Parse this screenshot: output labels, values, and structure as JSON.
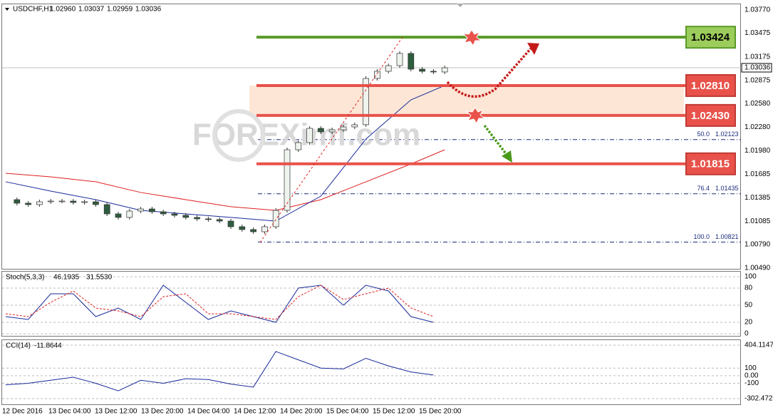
{
  "chart_data": [
    {
      "type": "candlestick",
      "symbol": "USDCHF,H1",
      "ohlc": [
        {
          "value": 1.0296,
          "label": "1.02960"
        },
        1.03037,
        1.02959,
        1.03036
      ],
      "watermark": "FOREXimf.com",
      "closes": [
        1.0136,
        1.01315,
        1.01297,
        1.01333,
        1.01342,
        1.01342,
        1.01324,
        1.01333,
        1.01297,
        1.01179,
        1.01134,
        1.01215,
        1.01242,
        1.01206,
        1.01179,
        1.01161,
        1.01134,
        1.01116,
        1.01107,
        1.01088,
        1.01016,
        1.0098,
        1.00952,
        1.01016,
        1.01224,
        1.01994,
        1.02085,
        1.02266,
        1.02221,
        1.02248,
        1.02284,
        1.02312,
        1.029,
        1.02991,
        1.03063,
        1.03218,
        1.03018,
        1.02991,
        1.02982,
        1.03036
      ],
      "up_color": "#eef3ee",
      "down_color": "#2f5d3f",
      "ma_index": [
        0,
        4,
        8,
        12,
        16,
        20,
        24,
        28,
        32,
        36,
        39
      ],
      "series": [
        {
          "color": "#e02020",
          "values": [
            1.01695,
            1.0165,
            1.01587,
            1.01451,
            1.0136,
            1.0127,
            1.01224,
            1.0136,
            1.01587,
            1.01813,
            1.01994
          ]
        },
        {
          "color": "#1a2a9a",
          "values": [
            1.01587,
            1.01469,
            1.0136,
            1.01224,
            1.01179,
            1.01134,
            1.01088,
            1.01405,
            1.0213,
            1.02628,
            1.0281
          ]
        }
      ],
      "current_price": 1.03036,
      "ylim": [
        {
          "value": 1.0049,
          "label": "1.00490"
        },
        {
          "value": 1.0377,
          "label": "1.03770"
        }
      ],
      "yticks": [
        {
          "value": 1.0377,
          "label": "1.03770"
        },
        1.03475,
        1.03175,
        1.02875,
        {
          "value": 1.0258,
          "label": "1.02580"
        },
        {
          "value": 1.0228,
          "label": "1.02280"
        },
        {
          "value": 1.0198,
          "label": "1.01980"
        },
        1.01685,
        1.01385,
        1.01085,
        {
          "value": 1.0079,
          "label": "1.00790"
        },
        {
          "value": 1.0049,
          "label": "1.00490"
        }
      ],
      "levels": [
        {
          "price": 1.03424,
          "color": "#5a9a28",
          "box": "#9ccc5c",
          "text": "#000000"
        },
        {
          "price": {
            "value": 1.0281,
            "label": "1.02810"
          },
          "color": "#e8524a",
          "box": "#e8524a",
          "text": "#ffffff"
        },
        {
          "price": {
            "value": 1.0243,
            "label": "1.02430"
          },
          "color": "#e8524a",
          "box": "#e8524a",
          "text": "#ffffff"
        },
        {
          "price": 1.01815,
          "color": "#e8524a",
          "box": "#e8524a",
          "text": "#ffffff"
        }
      ],
      "fib": [
        {
          "level": {
            "value": 50,
            "label": "50.0"
          },
          "price": 1.02123
        },
        {
          "level": 76.4,
          "price": 1.01435
        },
        {
          "level": {
            "value": 100,
            "label": "100.0"
          },
          "price": 1.00821
        }
      ],
      "time_labels": [
        "12 Dec 2016",
        "13 Dec 04:00",
        "13 Dec 12:00",
        "13 Dec 20:00",
        "14 Dec 04:00",
        "14 Dec 12:00",
        "14 Dec 20:00",
        "15 Dec 04:00",
        "15 Dec 12:00",
        "15 Dec 20:00"
      ]
    },
    {
      "type": "line",
      "name": "Stoch(5,3,3)",
      "header_values": [
        46.1935,
        {
          "value": 31.553,
          "label": "31.5530"
        }
      ],
      "series": [
        {
          "color": "#1a2a9a",
          "values": [
            30,
            25,
            70,
            70,
            30,
            45,
            25,
            85,
            55,
            25,
            40,
            30,
            20,
            80,
            85,
            50,
            85,
            75,
            30,
            20
          ]
        },
        {
          "color": "#e02020",
          "dashed": true,
          "values": [
            35,
            30,
            55,
            75,
            45,
            40,
            30,
            65,
            70,
            35,
            35,
            30,
            25,
            65,
            85,
            60,
            70,
            80,
            45,
            30
          ]
        }
      ],
      "ylim": [
        0,
        100
      ],
      "yticks": [
        100,
        80,
        50,
        20,
        0
      ]
    },
    {
      "type": "line",
      "name": "CCI(14)",
      "header_values": [
        -11.8644
      ],
      "series": [
        {
          "color": "#1a2a9a",
          "values": [
            -120,
            -100,
            -60,
            -20,
            -100,
            -200,
            -60,
            -100,
            -40,
            -50,
            -110,
            -150,
            320,
            210,
            100,
            90,
            230,
            130,
            50,
            10
          ]
        }
      ],
      "ylim": [
        -302.472,
        404.1147
      ],
      "yticks": [
        404.1147,
        100,
        {
          "value": 0,
          "label": "0.00"
        },
        -100,
        -302.472
      ]
    }
  ]
}
